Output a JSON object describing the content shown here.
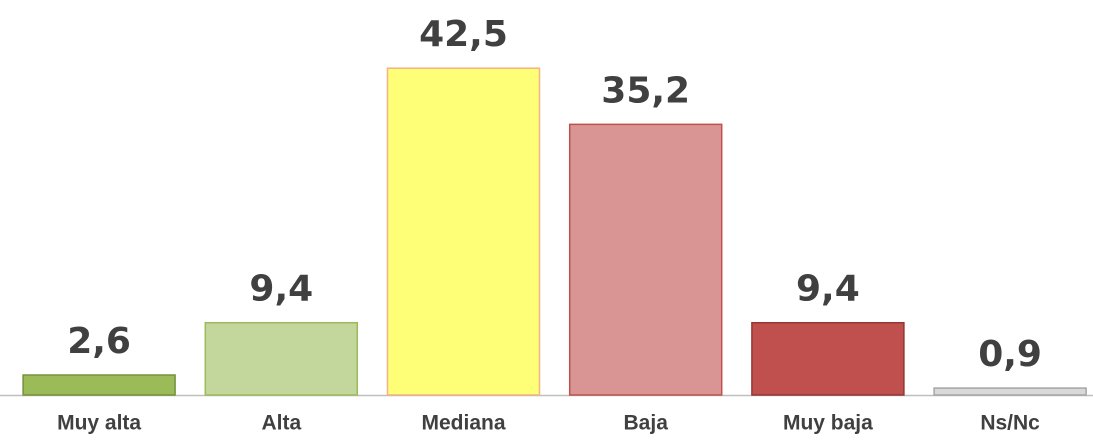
{
  "chart_data": {
    "type": "bar",
    "categories": [
      "Muy alta",
      "Alta",
      "Mediana",
      "Baja",
      "Muy baja",
      "Ns/Nc"
    ],
    "values": [
      2.6,
      9.4,
      42.5,
      35.2,
      9.4,
      0.9
    ],
    "value_labels": [
      "2,6",
      "9,4",
      "42,5",
      "35,2",
      "9,4",
      "0,9"
    ],
    "colors": [
      "#9bbb59",
      "#c3d69b",
      "#ffff77",
      "#d99594",
      "#c0504d",
      "#d9d9d9"
    ],
    "edgecolors": [
      "#76923c",
      "#9bbb59",
      "#f4b183",
      "#c0504d",
      "#943634",
      "#a6a6a6"
    ],
    "ylim": [
      0,
      45
    ]
  }
}
